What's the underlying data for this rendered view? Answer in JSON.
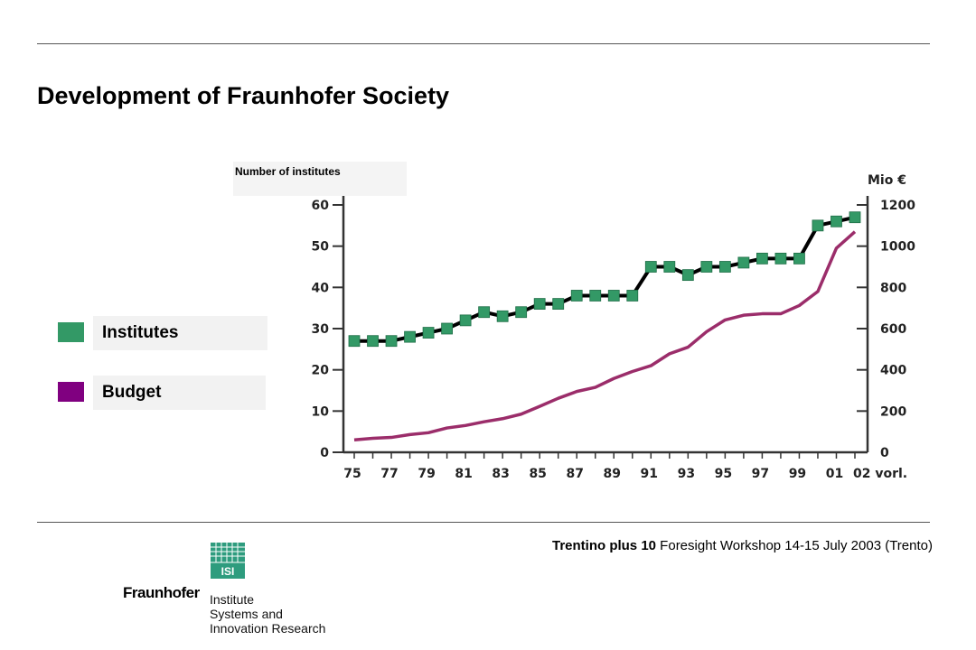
{
  "title": "Development of Fraunhofer Society",
  "legend": [
    {
      "label": "Institutes",
      "color": "#339966"
    },
    {
      "label": "Budget",
      "color": "#800080"
    }
  ],
  "institutes_axis_label": "Number of institutes",
  "budget_axis_unit": "Mio €",
  "footer": {
    "bold": "Trentino plus 10",
    "rest": " Foresight Workshop 14-15 July 2003 (Trento)"
  },
  "logo": {
    "icon_text": "ISI",
    "wordmark": "Fraunhofer",
    "lines": [
      "Institute",
      "Systems and",
      "Innovation Research"
    ]
  },
  "chart_data": {
    "type": "line",
    "title": "",
    "x": [
      "75",
      "76",
      "77",
      "78",
      "79",
      "80",
      "81",
      "82",
      "83",
      "84",
      "85",
      "86",
      "87",
      "88",
      "89",
      "90",
      "91",
      "92",
      "93",
      "94",
      "95",
      "96",
      "97",
      "98",
      "99",
      "00",
      "01",
      "02"
    ],
    "x_tick_labels": [
      "75",
      "77",
      "79",
      "81",
      "83",
      "85",
      "87",
      "89",
      "91",
      "93",
      "95",
      "97",
      "99",
      "01",
      "02 vorl."
    ],
    "left_axis": {
      "label": "Number of institutes",
      "ylim": [
        0,
        60
      ],
      "ticks": [
        0,
        10,
        20,
        30,
        40,
        50,
        60
      ]
    },
    "right_axis": {
      "label": "Mio €",
      "ylim": [
        0,
        1200
      ],
      "ticks": [
        0,
        200,
        400,
        600,
        800,
        1000,
        1200
      ]
    },
    "series": [
      {
        "name": "Institutes",
        "axis": "left",
        "color": "#339966",
        "line_color": "#000000",
        "marker": "square",
        "values": [
          27,
          27,
          27,
          28,
          29,
          30,
          32,
          34,
          33,
          34,
          36,
          36,
          38,
          38,
          38,
          38,
          45,
          45,
          43,
          45,
          45,
          46,
          47,
          47,
          47,
          55,
          56,
          57
        ]
      },
      {
        "name": "Budget",
        "axis": "right",
        "color": "#9b2d6a",
        "values": [
          60,
          68,
          72,
          86,
          95,
          118,
          130,
          148,
          163,
          185,
          223,
          262,
          295,
          315,
          358,
          392,
          420,
          478,
          510,
          585,
          642,
          665,
          672,
          672,
          712,
          780,
          990,
          1070
        ]
      }
    ],
    "grid": false,
    "legend_position": "left"
  }
}
